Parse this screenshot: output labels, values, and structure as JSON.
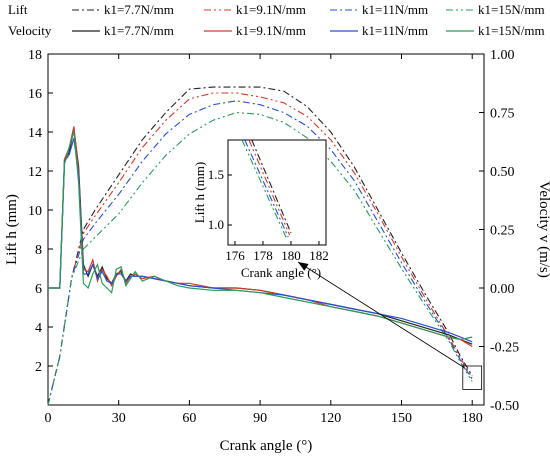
{
  "chart_data": {
    "type": "line",
    "xlabel": "Crank angle (°)",
    "ylabel_left": "Lift h (mm)",
    "ylabel_right": "Velocity v (m/s)",
    "xlim": [
      0,
      185
    ],
    "ylim_left": [
      0,
      18
    ],
    "ylim_right": [
      -0.5,
      1.0
    ],
    "x_ticks": [
      "0",
      "30",
      "60",
      "90",
      "120",
      "150",
      "180"
    ],
    "y_left_ticks": [
      "2",
      "4",
      "6",
      "8",
      "10",
      "12",
      "14",
      "16",
      "18"
    ],
    "y_right_ticks": [
      "-0.50",
      "-0.25",
      "0.00",
      "0.25",
      "0.50",
      "0.75",
      "1.00"
    ],
    "legend": {
      "position": "top",
      "row_lift_label": "Lift",
      "row_velocity_label": "Velocity",
      "entries": [
        "k1=7.7N/mm",
        "k1=9.1N/mm",
        "k1=11N/mm",
        "k1=15N/mm"
      ]
    },
    "lift_series": [
      {
        "name": "k1=7.7N/mm",
        "color": "#222222",
        "x": [
          0,
          5,
          10,
          15,
          20,
          30,
          40,
          50,
          60,
          70,
          80,
          90,
          100,
          110,
          120,
          130,
          140,
          150,
          160,
          170,
          175,
          178,
          180
        ],
        "y": [
          0,
          2.5,
          6.5,
          9.0,
          10.0,
          11.8,
          13.6,
          15.0,
          16.2,
          16.3,
          16.3,
          16.3,
          16.1,
          15.3,
          14.0,
          12.2,
          10.0,
          7.8,
          5.7,
          3.7,
          2.5,
          1.9,
          1.5
        ]
      },
      {
        "name": "k1=9.1N/mm",
        "color": "#d03a2a",
        "x": [
          0,
          5,
          10,
          15,
          20,
          30,
          40,
          50,
          60,
          70,
          80,
          90,
          100,
          110,
          120,
          130,
          140,
          150,
          160,
          170,
          175,
          178,
          180
        ],
        "y": [
          0,
          2.5,
          6.5,
          8.8,
          9.7,
          11.4,
          13.2,
          14.6,
          15.7,
          16.0,
          16.0,
          15.8,
          15.5,
          14.8,
          13.6,
          11.9,
          9.8,
          7.6,
          5.5,
          3.5,
          2.4,
          1.8,
          1.4
        ]
      },
      {
        "name": "k1=11N/mm",
        "color": "#2a4fd0",
        "x": [
          0,
          5,
          10,
          15,
          20,
          30,
          40,
          50,
          60,
          70,
          80,
          90,
          100,
          110,
          120,
          130,
          140,
          150,
          160,
          170,
          175,
          178,
          180
        ],
        "y": [
          0,
          2.5,
          6.5,
          8.5,
          9.3,
          10.8,
          12.5,
          13.9,
          14.9,
          15.4,
          15.6,
          15.4,
          15.0,
          14.3,
          13.1,
          11.5,
          9.4,
          7.3,
          5.3,
          3.4,
          2.3,
          1.7,
          1.3
        ]
      },
      {
        "name": "k1=15N/mm",
        "color": "#2a9a5a",
        "x": [
          0,
          5,
          10,
          15,
          20,
          30,
          40,
          50,
          60,
          70,
          80,
          90,
          100,
          110,
          120,
          130,
          140,
          150,
          160,
          170,
          175,
          178,
          180
        ],
        "y": [
          0,
          2.5,
          6.5,
          8.0,
          8.6,
          9.8,
          11.4,
          12.8,
          13.9,
          14.6,
          15.0,
          14.9,
          14.5,
          13.7,
          12.5,
          11.0,
          9.0,
          7.0,
          5.1,
          3.3,
          2.2,
          1.6,
          1.2
        ]
      }
    ],
    "velocity_series": [
      {
        "name": "k1=7.7N/mm",
        "color": "#222222",
        "x": [
          0,
          5,
          7,
          9,
          11,
          13,
          15,
          17,
          19,
          21,
          23,
          25,
          27,
          29,
          31,
          33,
          35,
          37,
          40,
          45,
          50,
          55,
          60,
          70,
          80,
          90,
          100,
          110,
          120,
          130,
          140,
          150,
          160,
          170,
          175,
          180
        ],
        "y": [
          0.0,
          0.0,
          0.55,
          0.58,
          0.68,
          0.52,
          0.1,
          0.05,
          0.1,
          0.05,
          0.09,
          0.04,
          0.02,
          0.06,
          0.07,
          0.03,
          0.06,
          0.05,
          0.05,
          0.04,
          0.03,
          0.02,
          0.01,
          0.0,
          0.0,
          -0.01,
          -0.03,
          -0.05,
          -0.07,
          -0.09,
          -0.11,
          -0.14,
          -0.17,
          -0.2,
          -0.22,
          -0.24
        ]
      },
      {
        "name": "k1=9.1N/mm",
        "color": "#d03a2a",
        "x": [
          0,
          5,
          7,
          9,
          11,
          13,
          15,
          17,
          19,
          21,
          23,
          25,
          27,
          29,
          31,
          33,
          35,
          37,
          40,
          45,
          50,
          55,
          60,
          70,
          80,
          90,
          100,
          110,
          120,
          130,
          140,
          150,
          160,
          170,
          175,
          180
        ],
        "y": [
          0.0,
          0.0,
          0.55,
          0.6,
          0.69,
          0.5,
          0.08,
          0.07,
          0.12,
          0.03,
          0.08,
          0.05,
          0.01,
          0.05,
          0.08,
          0.02,
          0.05,
          0.06,
          0.04,
          0.05,
          0.03,
          0.02,
          0.02,
          0.0,
          0.0,
          -0.01,
          -0.03,
          -0.05,
          -0.08,
          -0.1,
          -0.12,
          -0.15,
          -0.18,
          -0.21,
          -0.22,
          -0.25
        ]
      },
      {
        "name": "k1=11N/mm",
        "color": "#2a4fd0",
        "x": [
          0,
          5,
          7,
          9,
          11,
          13,
          15,
          17,
          19,
          21,
          23,
          25,
          27,
          29,
          31,
          33,
          35,
          37,
          40,
          45,
          50,
          55,
          60,
          70,
          80,
          90,
          100,
          110,
          120,
          130,
          140,
          150,
          160,
          170,
          175,
          180
        ],
        "y": [
          0.0,
          0.0,
          0.54,
          0.57,
          0.64,
          0.48,
          0.06,
          0.06,
          0.1,
          0.04,
          0.07,
          0.03,
          0.02,
          0.06,
          0.06,
          0.03,
          0.05,
          0.05,
          0.05,
          0.04,
          0.03,
          0.02,
          0.01,
          0.0,
          -0.01,
          -0.02,
          -0.03,
          -0.05,
          -0.07,
          -0.09,
          -0.11,
          -0.13,
          -0.16,
          -0.19,
          -0.21,
          -0.23
        ]
      },
      {
        "name": "k1=15N/mm",
        "color": "#2a9a5a",
        "x": [
          0,
          5,
          7,
          9,
          11,
          13,
          15,
          17,
          19,
          21,
          23,
          25,
          27,
          29,
          31,
          33,
          35,
          37,
          40,
          45,
          50,
          55,
          60,
          70,
          80,
          90,
          100,
          110,
          120,
          130,
          140,
          150,
          160,
          170,
          175,
          180
        ],
        "y": [
          0.0,
          0.0,
          0.53,
          0.6,
          0.67,
          0.45,
          0.02,
          0.0,
          0.06,
          0.1,
          0.02,
          0.0,
          -0.02,
          0.08,
          0.09,
          0.01,
          0.04,
          0.07,
          0.03,
          0.05,
          0.03,
          0.01,
          0.0,
          -0.01,
          -0.01,
          -0.02,
          -0.04,
          -0.06,
          -0.08,
          -0.1,
          -0.12,
          -0.15,
          -0.18,
          -0.21,
          -0.22,
          -0.21
        ]
      }
    ],
    "inset": {
      "xlabel": "Crank angle (°)",
      "ylabel": "Lift h (mm)",
      "xlim": [
        175.5,
        182.5
      ],
      "ylim": [
        0.8,
        1.85
      ],
      "x_ticks": [
        "176",
        "178",
        "180",
        "182"
      ],
      "y_ticks": [
        "1.0",
        "1.5"
      ]
    }
  }
}
